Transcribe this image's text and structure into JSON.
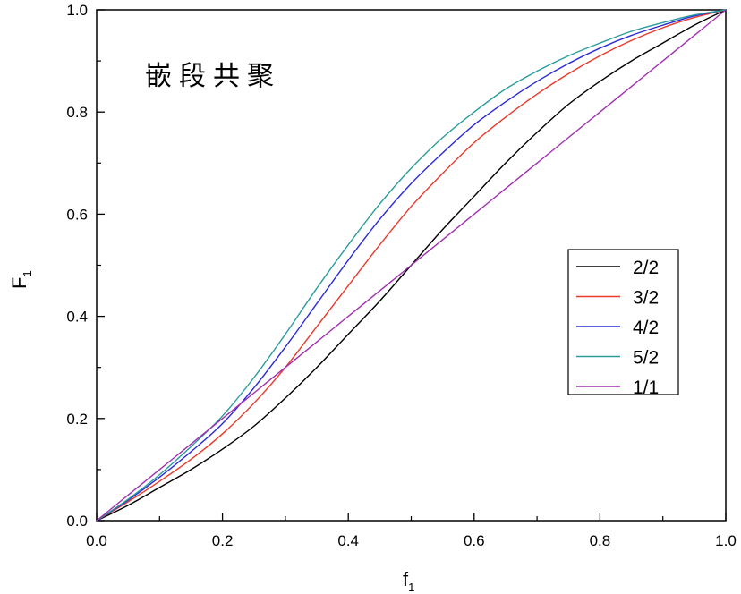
{
  "chart_data": {
    "type": "line",
    "annotation": "嵌段共聚",
    "xlabel": {
      "main": "f",
      "sub": "1"
    },
    "ylabel": {
      "main": "F",
      "sub": "1"
    },
    "xlim": [
      0.0,
      1.0
    ],
    "ylim": [
      0.0,
      1.0
    ],
    "xticks": [
      "0.0",
      "0.2",
      "0.4",
      "0.6",
      "0.8",
      "1.0"
    ],
    "yticks": [
      "0.0",
      "0.2",
      "0.4",
      "0.6",
      "0.8",
      "1.0"
    ],
    "grid": false,
    "legend_position": "right",
    "x": [
      0.0,
      0.05,
      0.1,
      0.15,
      0.2,
      0.25,
      0.3,
      0.35,
      0.4,
      0.45,
      0.5,
      0.55,
      0.6,
      0.65,
      0.7,
      0.75,
      0.8,
      0.85,
      0.9,
      0.95,
      1.0
    ],
    "series": [
      {
        "name": "2/2",
        "color": "#000000",
        "values": [
          0.0,
          0.03,
          0.065,
          0.1,
          0.14,
          0.185,
          0.24,
          0.3,
          0.365,
          0.43,
          0.5,
          0.57,
          0.635,
          0.7,
          0.76,
          0.815,
          0.86,
          0.9,
          0.935,
          0.97,
          1.0
        ]
      },
      {
        "name": "3/2",
        "color": "#e8392a",
        "values": [
          0.0,
          0.037,
          0.077,
          0.12,
          0.17,
          0.23,
          0.3,
          0.38,
          0.46,
          0.54,
          0.615,
          0.68,
          0.74,
          0.79,
          0.835,
          0.875,
          0.91,
          0.94,
          0.965,
          0.985,
          1.0
        ]
      },
      {
        "name": "4/2",
        "color": "#2a2ad8",
        "values": [
          0.0,
          0.04,
          0.085,
          0.135,
          0.19,
          0.26,
          0.34,
          0.425,
          0.51,
          0.59,
          0.66,
          0.72,
          0.775,
          0.82,
          0.86,
          0.895,
          0.925,
          0.95,
          0.97,
          0.988,
          1.0
        ]
      },
      {
        "name": "5/2",
        "color": "#2a9c9c",
        "values": [
          0.0,
          0.042,
          0.09,
          0.145,
          0.205,
          0.28,
          0.365,
          0.455,
          0.54,
          0.62,
          0.69,
          0.75,
          0.8,
          0.845,
          0.88,
          0.91,
          0.935,
          0.958,
          0.975,
          0.99,
          1.0
        ]
      },
      {
        "name": "1/1",
        "color": "#a030b0",
        "values": [
          0.0,
          0.05,
          0.1,
          0.15,
          0.2,
          0.25,
          0.3,
          0.35,
          0.4,
          0.45,
          0.5,
          0.55,
          0.6,
          0.65,
          0.7,
          0.75,
          0.8,
          0.85,
          0.9,
          0.95,
          1.0
        ]
      }
    ]
  }
}
